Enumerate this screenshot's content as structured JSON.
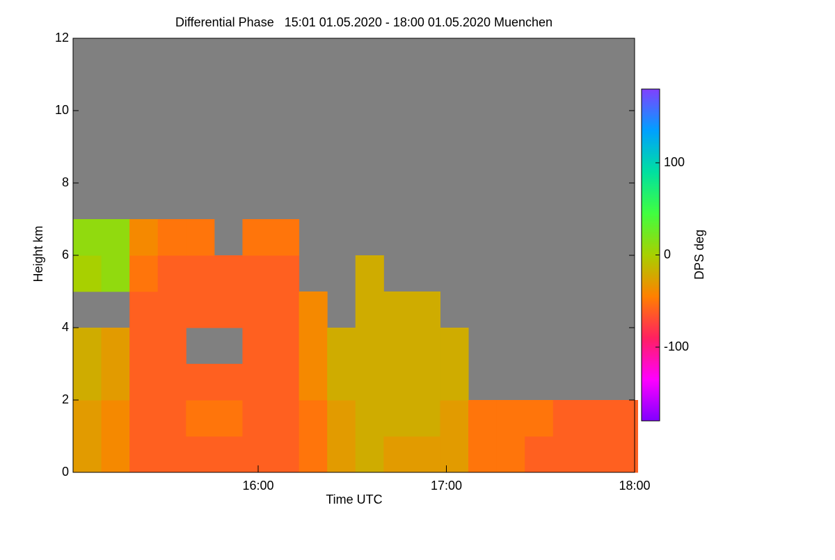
{
  "chart_data": {
    "type": "heatmap",
    "title": "Differential Phase   15:01 01.05.2020 - 18:00 01.05.2020 Muenchen",
    "xlabel": "Time UTC",
    "ylabel": "Height km",
    "colorbar_label": "DPS deg",
    "x": [
      905.5,
      914.5,
      923.5,
      932.5,
      941.5,
      950.5,
      959.5,
      968.5,
      977.5,
      986.5,
      995.5,
      1004.5,
      1013.5,
      1022.5,
      1031.5,
      1040.5,
      1049.5,
      1058.5,
      1067.5,
      1076.5
    ],
    "y": [
      0.5,
      1.5,
      2.5,
      3.5,
      4.5,
      5.5,
      6.5,
      7.5,
      8.5,
      9.5,
      10.5,
      11.5
    ],
    "z": [
      [
        -30,
        -40,
        -60,
        -60,
        -60,
        -60,
        -60,
        -60,
        -50,
        -30,
        -20,
        -30,
        -30,
        -30,
        -50,
        -50,
        -60,
        -60,
        -60,
        -60
      ],
      [
        -30,
        -40,
        -60,
        -60,
        -50,
        -50,
        -60,
        -60,
        -50,
        -30,
        -20,
        -20,
        -20,
        -30,
        -50,
        -50,
        -50,
        -60,
        -60,
        -60
      ],
      [
        -20,
        -30,
        -60,
        -60,
        -60,
        -60,
        -60,
        -60,
        -40,
        -20,
        -20,
        -20,
        -20,
        -20,
        null,
        null,
        null,
        null,
        null,
        null
      ],
      [
        -20,
        -30,
        -60,
        -60,
        null,
        null,
        -60,
        -60,
        -40,
        -20,
        -20,
        -20,
        -20,
        -20,
        null,
        null,
        null,
        null,
        null,
        null
      ],
      [
        null,
        null,
        -60,
        -60,
        -60,
        -60,
        -60,
        -60,
        -40,
        null,
        -20,
        -20,
        -20,
        null,
        null,
        null,
        null,
        null,
        null,
        null
      ],
      [
        0,
        10,
        -50,
        -60,
        -60,
        -60,
        -60,
        -60,
        null,
        null,
        -20,
        null,
        null,
        null,
        null,
        null,
        null,
        null,
        null,
        null
      ],
      [
        10,
        10,
        -40,
        -50,
        -50,
        null,
        -50,
        -50,
        null,
        null,
        null,
        null,
        null,
        null,
        null,
        null,
        null,
        null,
        null,
        null
      ],
      [
        null,
        null,
        null,
        null,
        null,
        null,
        null,
        null,
        null,
        null,
        null,
        null,
        null,
        null,
        null,
        null,
        null,
        null,
        null,
        null
      ],
      [
        null,
        null,
        null,
        null,
        null,
        null,
        null,
        null,
        null,
        null,
        null,
        null,
        null,
        null,
        null,
        null,
        null,
        null,
        null,
        null
      ],
      [
        null,
        null,
        null,
        null,
        null,
        null,
        null,
        null,
        null,
        null,
        null,
        null,
        null,
        null,
        null,
        null,
        null,
        null,
        null,
        null
      ],
      [
        null,
        null,
        null,
        null,
        null,
        null,
        null,
        null,
        null,
        null,
        null,
        null,
        null,
        null,
        null,
        null,
        null,
        null,
        null,
        null
      ],
      [
        null,
        null,
        null,
        null,
        null,
        null,
        null,
        null,
        null,
        null,
        null,
        null,
        null,
        null,
        null,
        null,
        null,
        null,
        null,
        null
      ]
    ],
    "xlim": [
      901,
      1080
    ],
    "xticks": [
      {
        "value": 960,
        "label": "16:00"
      },
      {
        "value": 1020,
        "label": "17:00"
      },
      {
        "value": 1080,
        "label": "18:00"
      }
    ],
    "ylim": [
      0,
      12
    ],
    "yticks": [
      0,
      2,
      4,
      6,
      8,
      10,
      12
    ],
    "zlim": [
      -180,
      180
    ],
    "zticks": [
      -100,
      0,
      100
    ],
    "colormap": [
      "#8000ff",
      "#ff00ff",
      "#ff2060",
      "#ff8000",
      "#a8d000",
      "#40ff40",
      "#00e0a0",
      "#00a0ff",
      "#8040ff"
    ],
    "nodata_color": "#808080"
  }
}
